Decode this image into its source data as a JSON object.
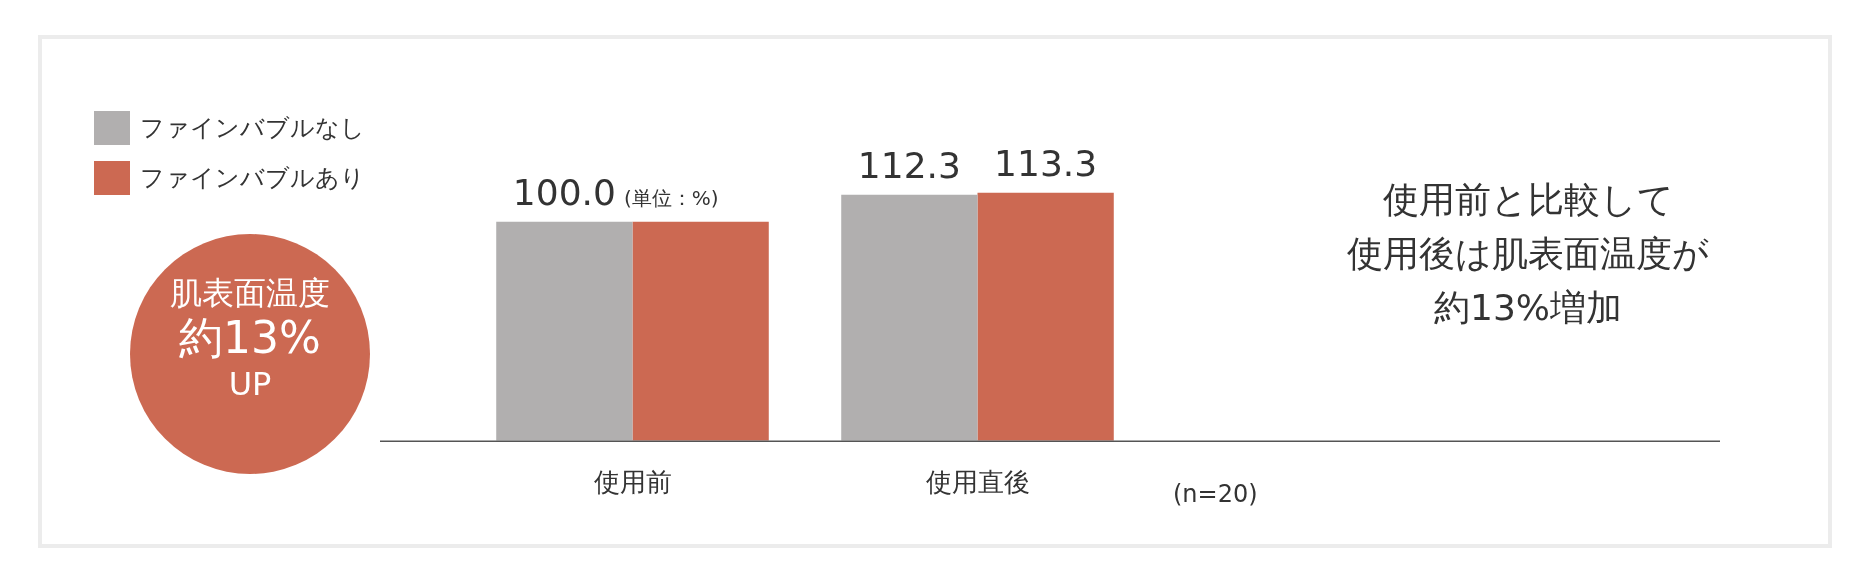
{
  "chart_data": {
    "type": "bar",
    "categories": [
      "使用前",
      "使用直後"
    ],
    "series": [
      {
        "name": "ファインバブルなし",
        "color": "#b1afaf",
        "values": [
          100.0,
          112.3
        ],
        "value_labels": [
          "100.0",
          "112.3"
        ]
      },
      {
        "name": "ファインバブルあり",
        "color": "#cc6952",
        "values": [
          100.0,
          113.3
        ],
        "value_labels": [
          null,
          "113.3"
        ]
      }
    ],
    "tick_labels": "x",
    "grid": false,
    "legend": "top left",
    "annotations": [
      "(単位：%)",
      "(n=20)",
      "使用前と比較して",
      "使用後は肌表面温度が",
      "約13%増加",
      "肌表面温度",
      "約13%",
      "UP"
    ]
  }
}
